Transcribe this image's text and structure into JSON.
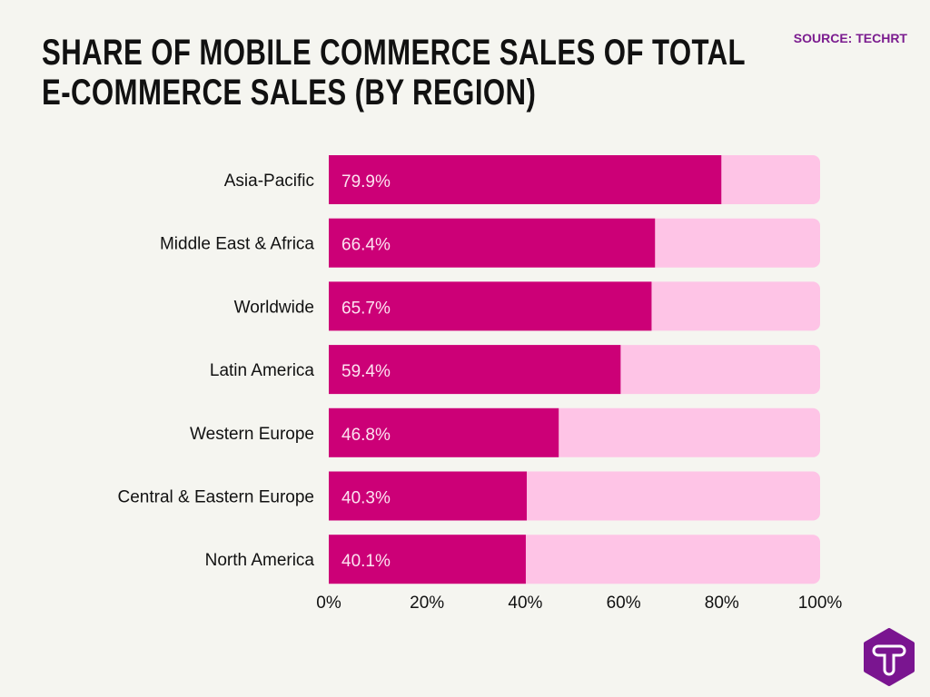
{
  "title": "SHARE OF MOBILE COMMERCE SALES OF TOTAL E-COMMERCE SALES (BY REGION)",
  "source": "SOURCE: TECHRT",
  "colors": {
    "bar": "#cc0077",
    "track": "#fec4e6",
    "label": "#fde3f1"
  },
  "chart_data": {
    "type": "bar",
    "orientation": "horizontal",
    "title": "SHARE OF MOBILE COMMERCE SALES OF TOTAL E-COMMERCE SALES (BY REGION)",
    "categories": [
      "Asia-Pacific",
      "Middle East & Africa",
      "Worldwide",
      "Latin America",
      "Western Europe",
      "Central & Eastern Europe",
      "North America"
    ],
    "values": [
      79.9,
      66.4,
      65.7,
      59.4,
      46.8,
      40.3,
      40.1
    ],
    "value_labels": [
      "79.9%",
      "66.4%",
      "65.7%",
      "59.4%",
      "46.8%",
      "40.3%",
      "40.1%"
    ],
    "xlim": [
      0,
      100
    ],
    "xticks": [
      "0%",
      "20%",
      "40%",
      "60%",
      "80%",
      "100%"
    ],
    "xlabel": "",
    "ylabel": "",
    "grid": false
  }
}
